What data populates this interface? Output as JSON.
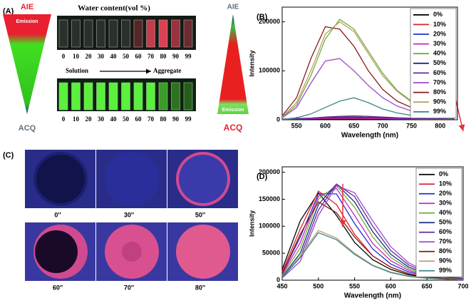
{
  "panel_a": {
    "label": "(A)",
    "left_top": "AIE",
    "left_emission": "Emission",
    "left_bottom": "ACQ",
    "title": "Water content(vol %)",
    "top_numbers": [
      "0",
      "10",
      "20",
      "30",
      "40",
      "50",
      "60",
      "70",
      "80",
      "90",
      "99"
    ],
    "bottom_numbers": [
      "0",
      "10",
      "20",
      "30",
      "40",
      "50",
      "60",
      "70",
      "80",
      "90",
      "99"
    ],
    "arrow_start": "Solution",
    "arrow_end": "Aggregate",
    "right_top": "AIE",
    "right_emission": "Emission",
    "right_bottom": "ACQ"
  },
  "panel_c": {
    "label": "(C)",
    "times": [
      "0''",
      "30''",
      "50''",
      "60''",
      "70''",
      "80''"
    ]
  },
  "chart_data": [
    {
      "type": "line",
      "label": "(B)",
      "x_label": "Wavelength (nm)",
      "y_label": "Intensity",
      "x": [
        525,
        550,
        575,
        600,
        625,
        650,
        675,
        700,
        725,
        750,
        775,
        800,
        825
      ],
      "xlim": [
        525,
        830
      ],
      "ylim": [
        0,
        230000
      ],
      "xticks": [
        550,
        600,
        650,
        700,
        750,
        800
      ],
      "yticks": [
        0,
        100000,
        200000
      ],
      "legend": "upper right",
      "series": [
        {
          "name": "0%",
          "color": "#000000",
          "values": [
            800,
            900,
            1000,
            1100,
            1200,
            1200,
            1100,
            1000,
            900,
            800,
            700,
            600,
            500
          ]
        },
        {
          "name": "10%",
          "color": "#e0202a",
          "values": [
            1000,
            1500,
            2000,
            2500,
            2800,
            2800,
            2500,
            2200,
            1800,
            1500,
            1200,
            1000,
            800
          ]
        },
        {
          "name": "20%",
          "color": "#2030d0",
          "values": [
            1200,
            1800,
            2500,
            3200,
            3600,
            3600,
            3300,
            2800,
            2300,
            1900,
            1500,
            1200,
            1000
          ]
        },
        {
          "name": "30%",
          "color": "#d020c0",
          "values": [
            1000,
            1600,
            2300,
            3000,
            3400,
            3500,
            3200,
            2700,
            2200,
            1800,
            1400,
            1100,
            900
          ]
        },
        {
          "name": "40%",
          "color": "#6fae3a",
          "values": [
            5000,
            30000,
            90000,
            165000,
            205000,
            185000,
            140000,
            95000,
            60000,
            38000,
            25000,
            17000,
            12000
          ]
        },
        {
          "name": "50%",
          "color": "#1a2a8a",
          "values": [
            1500,
            2500,
            3500,
            4500,
            5200,
            5500,
            5000,
            4300,
            3500,
            2800,
            2200,
            1700,
            1300
          ]
        },
        {
          "name": "60%",
          "color": "#6a2a9a",
          "values": [
            1000,
            2000,
            3500,
            5500,
            7000,
            8000,
            7000,
            5500,
            4200,
            3200,
            2400,
            1800,
            1400
          ]
        },
        {
          "name": "70%",
          "color": "#9a4ad0",
          "values": [
            4000,
            25000,
            75000,
            120000,
            125000,
            100000,
            70000,
            45000,
            28000,
            18000,
            12000,
            8000,
            6000
          ]
        },
        {
          "name": "80%",
          "color": "#8a1a1a",
          "values": [
            8000,
            45000,
            125000,
            190000,
            185000,
            150000,
            100000,
            62000,
            38000,
            25000,
            16000,
            11000,
            8000
          ]
        },
        {
          "name": "90%",
          "color": "#b5a06a",
          "values": [
            6000,
            35000,
            100000,
            175000,
            200000,
            180000,
            135000,
            90000,
            58000,
            36000,
            24000,
            16000,
            11000
          ]
        },
        {
          "name": "99%",
          "color": "#3f8585",
          "values": [
            1000,
            4000,
            12000,
            25000,
            38000,
            45000,
            35000,
            22000,
            14000,
            9000,
            6000,
            4000,
            3000
          ]
        }
      ]
    },
    {
      "type": "line",
      "label": "(D)",
      "x_label": "Wavelength (nm)",
      "y_label": "Intensity",
      "x": [
        450,
        475,
        500,
        525,
        550,
        575,
        600,
        625,
        650,
        675,
        700
      ],
      "xlim": [
        450,
        700
      ],
      "ylim": [
        0,
        210000
      ],
      "xticks": [
        450,
        500,
        550,
        600,
        650,
        700
      ],
      "yticks": [
        0,
        50000,
        100000,
        150000,
        200000
      ],
      "legend": "upper right",
      "series": [
        {
          "name": "0%",
          "color": "#000000",
          "values": [
            20000,
            110000,
            162000,
            120000,
            70000,
            38000,
            20000,
            10000,
            5000,
            2500,
            1000
          ]
        },
        {
          "name": "10%",
          "color": "#e0202a",
          "values": [
            15000,
            95000,
            165000,
            140000,
            85000,
            45000,
            24000,
            12000,
            6000,
            3000,
            1500
          ]
        },
        {
          "name": "20%",
          "color": "#2030d0",
          "values": [
            12000,
            80000,
            160000,
            160000,
            105000,
            58000,
            30000,
            15000,
            8000,
            4000,
            2000
          ]
        },
        {
          "name": "30%",
          "color": "#d020c0",
          "values": [
            10000,
            70000,
            155000,
            170000,
            120000,
            68000,
            36000,
            18000,
            9000,
            4500,
            2200
          ]
        },
        {
          "name": "40%",
          "color": "#6fae3a",
          "values": [
            8000,
            60000,
            150000,
            175000,
            135000,
            80000,
            42000,
            21000,
            10000,
            5000,
            2500
          ]
        },
        {
          "name": "50%",
          "color": "#1a2a8a",
          "values": [
            6000,
            50000,
            140000,
            178000,
            145000,
            90000,
            48000,
            24000,
            12000,
            6000,
            3000
          ]
        },
        {
          "name": "60%",
          "color": "#6a2a9a",
          "values": [
            5000,
            42000,
            130000,
            178000,
            155000,
            100000,
            55000,
            28000,
            14000,
            7000,
            3500
          ]
        },
        {
          "name": "70%",
          "color": "#9a4ad0",
          "values": [
            4000,
            35000,
            120000,
            175000,
            162000,
            110000,
            62000,
            32000,
            16000,
            8000,
            4000
          ]
        },
        {
          "name": "80%",
          "color": "#8a1a1a",
          "values": [
            12000,
            85000,
            145000,
            125000,
            80000,
            45000,
            24000,
            12000,
            6000,
            3000,
            1500
          ]
        },
        {
          "name": "90%",
          "color": "#b5a06a",
          "values": [
            5000,
            45000,
            92000,
            78000,
            50000,
            28000,
            15000,
            8000,
            4000,
            2000,
            1000
          ]
        },
        {
          "name": "99%",
          "color": "#3f8585",
          "values": [
            5000,
            42000,
            88000,
            75000,
            48000,
            27000,
            14000,
            7000,
            3500,
            1800,
            900
          ]
        }
      ]
    }
  ]
}
